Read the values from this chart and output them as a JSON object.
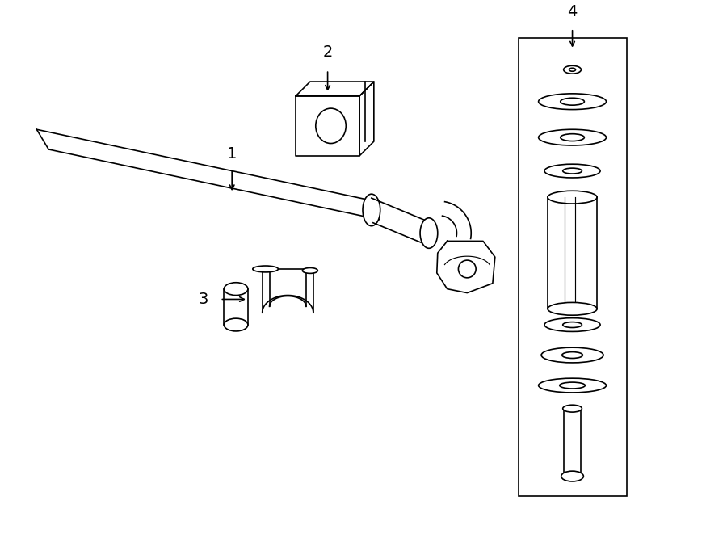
{
  "background_color": "#ffffff",
  "line_color": "#000000",
  "label_fontsize": 14,
  "fig_width": 9.0,
  "fig_height": 6.61
}
